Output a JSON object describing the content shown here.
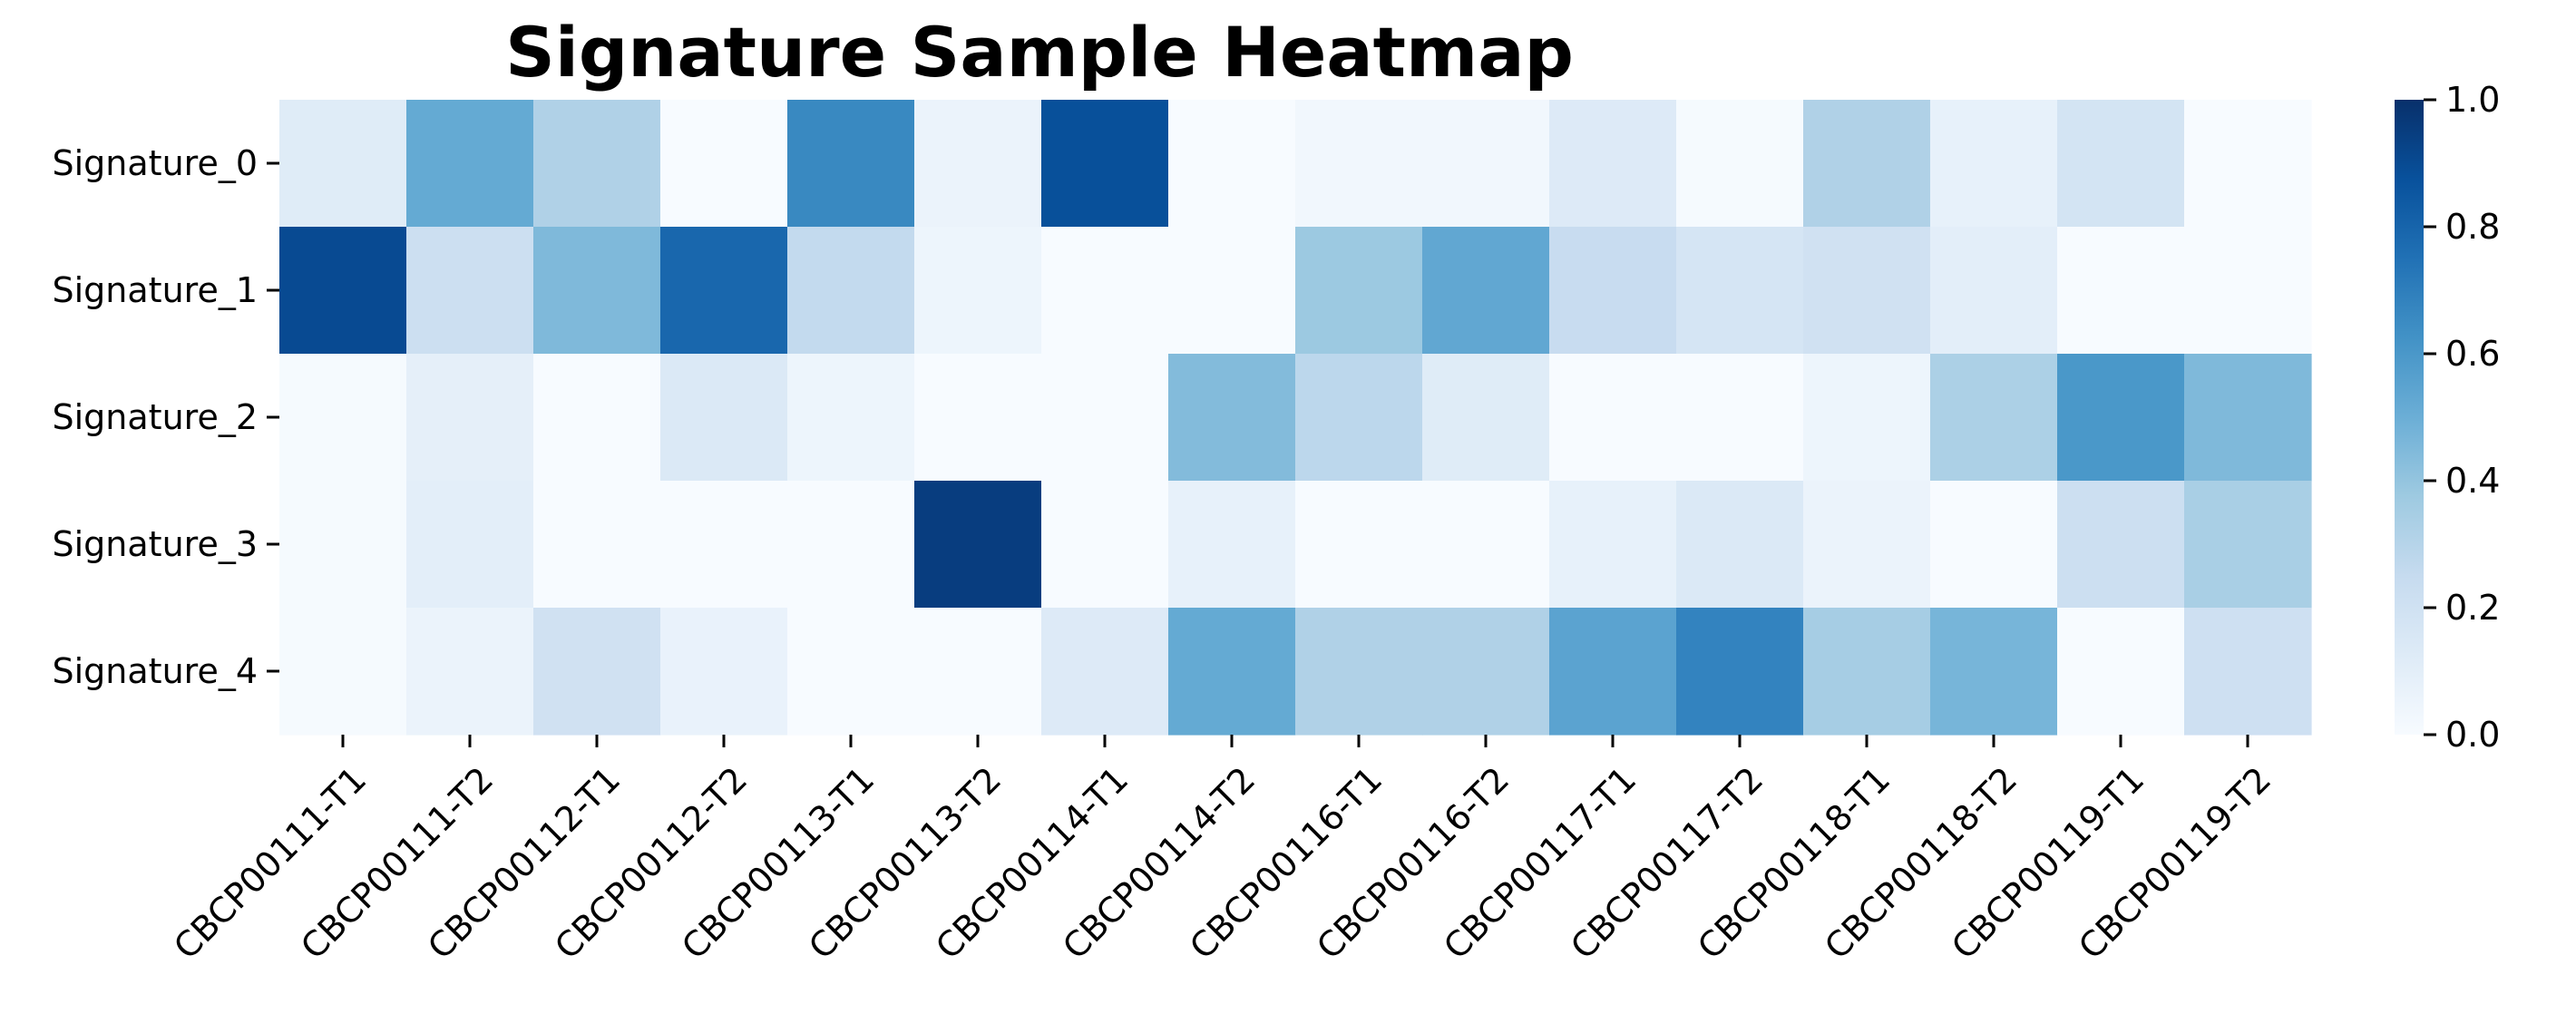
{
  "chart_data": {
    "type": "heatmap",
    "title": "Signature Sample Heatmap",
    "xlabel": "",
    "ylabel": "",
    "x_categories": [
      "CBCP00111-T1",
      "CBCP00111-T2",
      "CBCP00112-T1",
      "CBCP00112-T2",
      "CBCP00113-T1",
      "CBCP00113-T2",
      "CBCP00114-T1",
      "CBCP00114-T2",
      "CBCP00116-T1",
      "CBCP00116-T2",
      "CBCP00117-T1",
      "CBCP00117-T2",
      "CBCP00118-T1",
      "CBCP00118-T2",
      "CBCP00119-T1",
      "CBCP00119-T2"
    ],
    "y_categories": [
      "Signature_0",
      "Signature_1",
      "Signature_2",
      "Signature_3",
      "Signature_4"
    ],
    "values": [
      [
        0.12,
        0.52,
        0.32,
        0.0,
        0.66,
        0.06,
        0.88,
        0.0,
        0.03,
        0.03,
        0.13,
        0.01,
        0.32,
        0.08,
        0.18,
        0.0
      ],
      [
        0.9,
        0.22,
        0.45,
        0.79,
        0.26,
        0.05,
        0.0,
        0.0,
        0.38,
        0.53,
        0.24,
        0.17,
        0.2,
        0.1,
        0.0,
        0.0
      ],
      [
        0.01,
        0.09,
        0.0,
        0.14,
        0.05,
        0.0,
        0.0,
        0.44,
        0.28,
        0.12,
        0.0,
        0.0,
        0.05,
        0.33,
        0.6,
        0.45
      ],
      [
        0.01,
        0.1,
        0.0,
        0.0,
        0.0,
        0.95,
        0.0,
        0.08,
        0.0,
        0.0,
        0.08,
        0.14,
        0.06,
        0.0,
        0.22,
        0.34
      ],
      [
        0.01,
        0.06,
        0.2,
        0.07,
        0.0,
        0.0,
        0.13,
        0.52,
        0.32,
        0.32,
        0.55,
        0.68,
        0.35,
        0.47,
        0.0,
        0.21
      ]
    ],
    "vmin": 0.0,
    "vmax": 1.0,
    "colormap": "Blues",
    "colormap_stops": [
      "#f7fbff",
      "#deebf7",
      "#c6dbef",
      "#9ecae1",
      "#6baed6",
      "#4292c6",
      "#2171b5",
      "#08519c",
      "#08306b"
    ],
    "colorbar": {
      "ticks": [
        0.0,
        0.2,
        0.4,
        0.6,
        0.8,
        1.0
      ],
      "tick_labels": [
        "0.0",
        "0.2",
        "0.4",
        "0.6",
        "0.8",
        "1.0"
      ],
      "placement": "right"
    },
    "grid": false
  }
}
